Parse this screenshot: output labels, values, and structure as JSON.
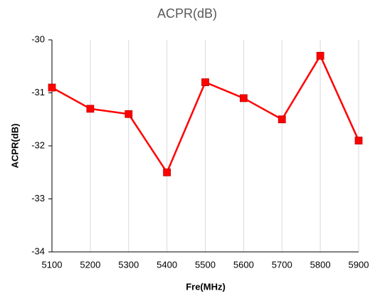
{
  "chart_data": {
    "type": "line",
    "title": "ACPR(dB)",
    "x_label": "Fre(MHz)",
    "y_label": "ACPR(dB)",
    "x": [
      5100,
      5200,
      5300,
      5400,
      5500,
      5600,
      5700,
      5800,
      5900
    ],
    "values": [
      -30.9,
      -31.3,
      -31.4,
      -32.5,
      -30.8,
      -31.1,
      -31.5,
      -30.3,
      -31.9
    ],
    "color": "#ff0000",
    "xlim": [
      5100,
      5900
    ],
    "xticks": [
      5100,
      5200,
      5300,
      5400,
      5500,
      5600,
      5700,
      5800,
      5900
    ],
    "ylim": [
      -34,
      -30
    ],
    "yticks": [
      -34,
      -33,
      -32,
      -31,
      -30
    ],
    "grid": "x"
  }
}
